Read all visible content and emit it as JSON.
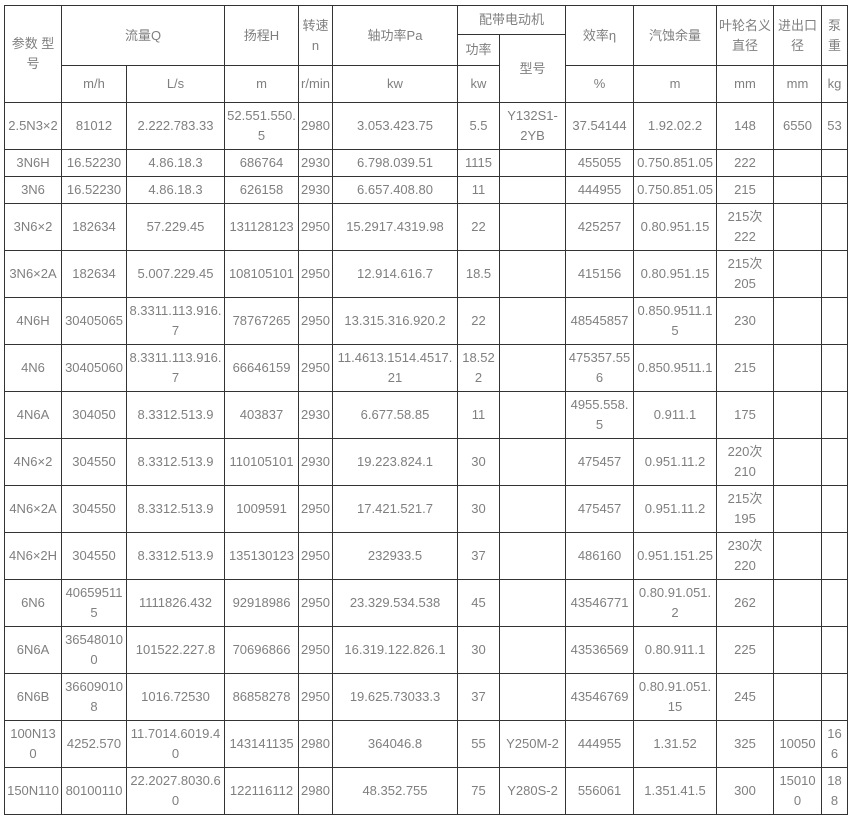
{
  "table": {
    "header": {
      "param_model": "参数 型号",
      "flow": "流量Q",
      "flow_m3h_unit": "m/h",
      "flow_ls_unit": "L/s",
      "head": "扬程H",
      "head_unit": "m",
      "speed": "转速n",
      "speed_unit": "r/min",
      "shaft_power": "轴功率Pa",
      "shaft_power_unit": "kw",
      "motor": "配带电动机",
      "motor_power": "功率",
      "motor_power_unit": "kw",
      "motor_model": "型号",
      "efficiency": "效率η",
      "efficiency_unit": "%",
      "npsh": "汽蚀余量",
      "npsh_unit": "m",
      "impeller": "叶轮名义\n直径",
      "impeller_unit": "mm",
      "port": "进出口\n径",
      "port_unit": "mm",
      "weight": "泵\n重",
      "weight_unit": "kg"
    },
    "column_keys": [
      "model",
      "flow-m3h",
      "flow-ls",
      "head-m",
      "speed-rpm",
      "shaft-power-kw",
      "motor-power-kw",
      "motor-model",
      "efficiency-pct",
      "npsh-m",
      "impeller-mm",
      "port-mm",
      "weight-kg"
    ],
    "rows": [
      [
        "2.5N3×2",
        "81012",
        "2.222.783.33",
        "52.551.550.5",
        "2980",
        "3.053.423.75",
        "5.5",
        "Y132S1-\n2YB",
        "37.54144",
        "1.92.02.2",
        "148",
        "6550",
        "53"
      ],
      [
        "3N6H",
        "16.52230",
        "4.86.18.3",
        "686764",
        "2930",
        "6.798.039.51",
        "1115",
        "",
        "455055",
        "0.750.851.05",
        "222",
        "",
        ""
      ],
      [
        "3N6",
        "16.52230",
        "4.86.18.3",
        "626158",
        "2930",
        "6.657.408.80",
        "11",
        "",
        "444955",
        "0.750.851.05",
        "215",
        "",
        ""
      ],
      [
        "3N6×2",
        "182634",
        "57.229.45",
        "131128123",
        "2950",
        "15.2917.4319.98",
        "22",
        "",
        "425257",
        "0.80.951.15",
        "215次\n222",
        "",
        ""
      ],
      [
        "3N6×2A",
        "182634",
        "5.007.229.45",
        "108105101",
        "2950",
        "12.914.616.7",
        "18.5",
        "",
        "415156",
        "0.80.951.15",
        "215次\n205",
        "",
        ""
      ],
      [
        "4N6H",
        "30405065",
        "8.3311.113.916.7",
        "78767265",
        "2950",
        "13.315.316.920.2",
        "22",
        "",
        "48545857",
        "0.850.9511.15",
        "230",
        "",
        ""
      ],
      [
        "4N6",
        "30405060",
        "8.3311.113.916.7",
        "66646159",
        "2950",
        "11.4613.1514.4517.21",
        "18.522",
        "",
        "475357.556",
        "0.850.9511.1",
        "215",
        "",
        ""
      ],
      [
        "4N6A",
        "304050",
        "8.3312.513.9",
        "403837",
        "2930",
        "6.677.58.85",
        "11",
        "",
        "4955.558.5",
        "0.911.1",
        "175",
        "",
        ""
      ],
      [
        "4N6×2",
        "304550",
        "8.3312.513.9",
        "110105101",
        "2930",
        "19.223.824.1",
        "30",
        "",
        "475457",
        "0.951.11.2",
        "220次\n210",
        "",
        ""
      ],
      [
        "4N6×2A",
        "304550",
        "8.3312.513.9",
        "1009591",
        "2950",
        "17.421.521.7",
        "30",
        "",
        "475457",
        "0.951.11.2",
        "215次\n195",
        "",
        ""
      ],
      [
        "4N6×2H",
        "304550",
        "8.3312.513.9",
        "135130123",
        "2950",
        "232933.5",
        "37",
        "",
        "486160",
        "0.951.151.25",
        "230次\n220",
        "",
        ""
      ],
      [
        "6N6",
        "406595115",
        "1111826.432",
        "92918986",
        "2950",
        "23.329.534.538",
        "45",
        "",
        "43546771",
        "0.80.91.051.2",
        "262",
        "",
        ""
      ],
      [
        "6N6A",
        "365480100",
        "101522.227.8",
        "70696866",
        "2950",
        "16.319.122.826.1",
        "30",
        "",
        "43536569",
        "0.80.911.1",
        "225",
        "",
        ""
      ],
      [
        "6N6B",
        "366090108",
        "1016.72530",
        "86858278",
        "2950",
        "19.625.73033.3",
        "37",
        "",
        "43546769",
        "0.80.91.051.15",
        "245",
        "",
        ""
      ],
      [
        "100N130",
        "4252.570",
        "11.7014.6019.40",
        "143141135",
        "2980",
        "364046.8",
        "55",
        "Y250M-2",
        "444955",
        "1.31.52",
        "325",
        "10050",
        "166"
      ],
      [
        "150N110",
        "80100110",
        "22.2027.8030.60",
        "122116112",
        "2980",
        "48.352.755",
        "75",
        "Y280S-2",
        "556061",
        "1.351.41.5",
        "300",
        "150100",
        "188"
      ]
    ]
  }
}
